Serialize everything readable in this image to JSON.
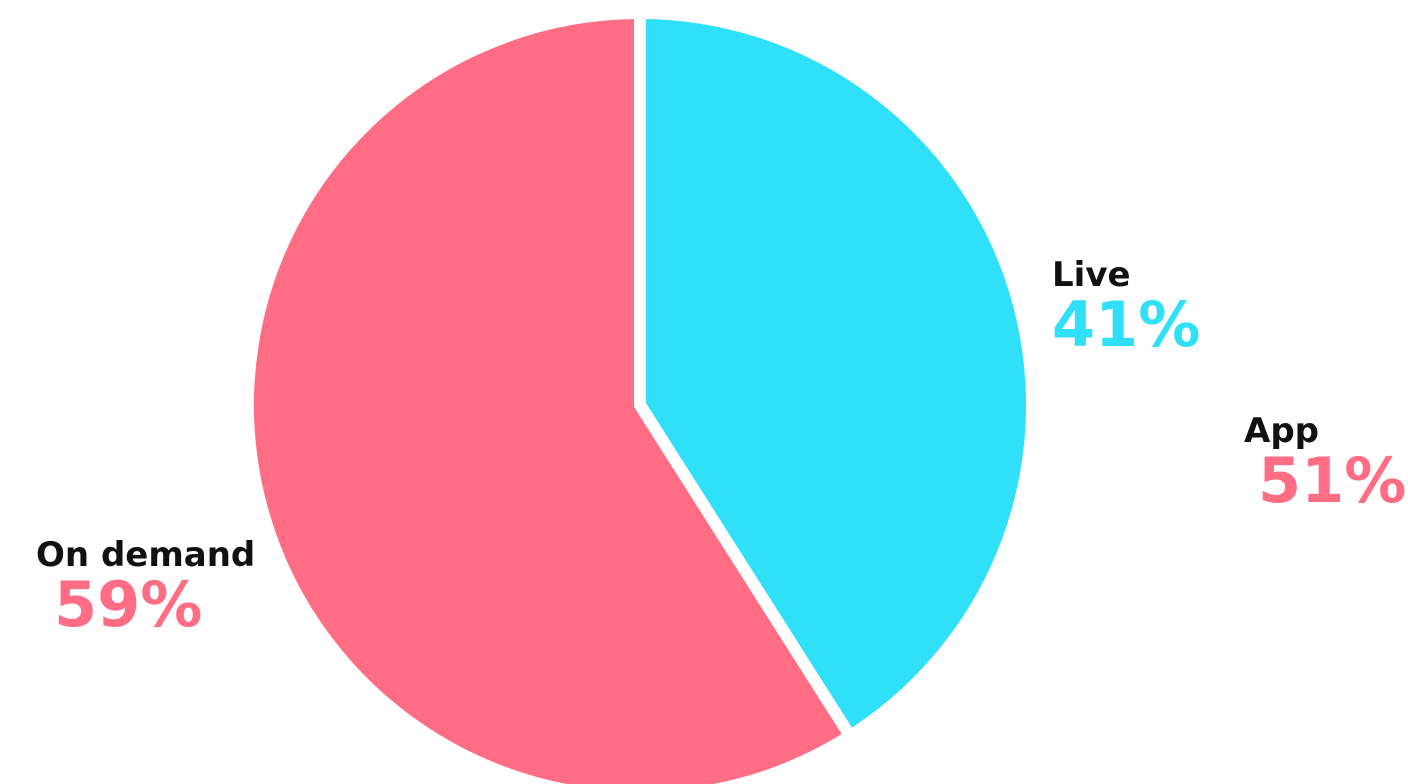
{
  "chart_data": {
    "type": "pie",
    "title": "",
    "slices": [
      {
        "label": "Live",
        "value": 41,
        "display": "41%",
        "color": "#30E0F8"
      },
      {
        "label": "On demand",
        "value": 59,
        "display": "59%",
        "color": "#FF6D84"
      }
    ],
    "annotations": [
      {
        "label": "App",
        "display": "51%",
        "color": "#FF6D84"
      }
    ]
  }
}
